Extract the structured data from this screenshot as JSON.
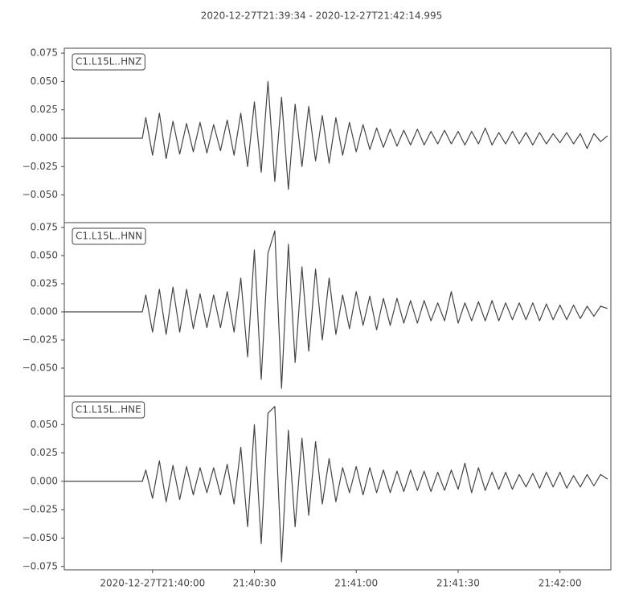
{
  "title": "2020-12-27T21:39:34  -  2020-12-27T21:42:14.995",
  "chart_data": [
    {
      "type": "line",
      "xlim": [
        0,
        160.995
      ],
      "ylim": [
        -0.0744,
        0.0793
      ],
      "yticks": [
        0.075,
        {
          "value": 0.05,
          "label": "0.050"
        },
        0.025,
        {
          "value": 0,
          "label": "0.000"
        },
        {
          "value": -0.025,
          "label": "−0.025"
        },
        {
          "value": -0.05,
          "label": "−0.050"
        }
      ],
      "x": [
        0,
        12,
        23,
        24,
        26,
        28,
        30,
        32,
        34,
        36,
        38,
        40,
        42,
        44,
        46,
        48,
        50,
        52,
        54,
        56,
        58,
        60,
        62,
        64,
        66,
        68,
        70,
        72,
        74,
        76,
        78,
        80,
        82,
        84,
        86,
        88,
        90,
        92,
        94,
        96,
        98,
        100,
        102,
        104,
        106,
        108,
        110,
        112,
        114,
        116,
        118,
        120,
        122,
        124,
        126,
        128,
        130,
        132,
        134,
        136,
        138,
        140,
        142,
        144,
        146,
        148,
        150,
        152,
        154,
        156,
        158,
        160
      ],
      "series": [
        {
          "name": "C1.L15L..HNZ",
          "color": "#444444",
          "values": [
            0,
            0,
            0,
            0.018,
            -0.015,
            0.022,
            -0.018,
            0.015,
            -0.014,
            0.013,
            -0.012,
            0.014,
            -0.013,
            0.012,
            -0.011,
            0.016,
            -0.015,
            0.022,
            -0.025,
            0.032,
            -0.03,
            0.05,
            -0.038,
            0.036,
            -0.045,
            0.03,
            -0.025,
            0.028,
            -0.02,
            0.02,
            -0.022,
            0.018,
            -0.015,
            0.014,
            -0.012,
            0.012,
            -0.01,
            0.009,
            -0.008,
            0.008,
            -0.007,
            0.007,
            -0.006,
            0.008,
            -0.006,
            0.006,
            -0.005,
            0.007,
            -0.005,
            0.006,
            -0.006,
            0.006,
            -0.005,
            0.009,
            -0.006,
            0.005,
            -0.005,
            0.006,
            -0.005,
            0.005,
            -0.006,
            0.005,
            -0.005,
            0.004,
            -0.004,
            0.005,
            -0.005,
            0.004,
            -0.009,
            0.004,
            -0.003,
            0.002
          ]
        }
      ]
    },
    {
      "type": "line",
      "xlim": [
        0,
        160.995
      ],
      "ylim": [
        -0.075,
        0.0793
      ],
      "yticks": [
        0.075,
        {
          "value": 0.05,
          "label": "0.050"
        },
        0.025,
        {
          "value": 0,
          "label": "0.000"
        },
        {
          "value": -0.025,
          "label": "−0.025"
        },
        {
          "value": -0.05,
          "label": "−0.050"
        }
      ],
      "x": [
        0,
        12,
        23,
        24,
        26,
        28,
        30,
        32,
        34,
        36,
        38,
        40,
        42,
        44,
        46,
        48,
        50,
        52,
        54,
        56,
        58,
        60,
        62,
        64,
        66,
        68,
        70,
        72,
        74,
        76,
        78,
        80,
        82,
        84,
        86,
        88,
        90,
        92,
        94,
        96,
        98,
        100,
        102,
        104,
        106,
        108,
        110,
        112,
        114,
        116,
        118,
        120,
        122,
        124,
        126,
        128,
        130,
        132,
        134,
        136,
        138,
        140,
        142,
        144,
        146,
        148,
        150,
        152,
        154,
        156,
        158,
        160
      ],
      "series": [
        {
          "name": "C1.L15L..HNN",
          "color": "#444444",
          "values": [
            0,
            0,
            0,
            0.015,
            -0.018,
            0.02,
            -0.02,
            0.022,
            -0.018,
            0.02,
            -0.015,
            0.016,
            -0.014,
            0.015,
            -0.014,
            0.018,
            -0.018,
            0.03,
            -0.04,
            0.055,
            -0.06,
            0.052,
            0.072,
            -0.068,
            0.06,
            -0.045,
            0.04,
            -0.035,
            0.038,
            -0.025,
            0.03,
            -0.02,
            0.015,
            -0.015,
            0.018,
            -0.012,
            0.014,
            -0.016,
            0.012,
            -0.012,
            0.012,
            -0.01,
            0.01,
            -0.01,
            0.01,
            -0.008,
            0.008,
            -0.008,
            0.018,
            -0.01,
            0.008,
            -0.008,
            0.009,
            -0.008,
            0.01,
            -0.008,
            0.008,
            -0.007,
            0.008,
            -0.007,
            0.008,
            -0.008,
            0.007,
            -0.007,
            0.006,
            -0.007,
            0.006,
            -0.006,
            0.005,
            -0.004,
            0.005,
            0.003
          ]
        }
      ]
    },
    {
      "type": "line",
      "xlim": [
        0,
        160.995
      ],
      "ylim": [
        -0.078,
        0.075
      ],
      "yticks": [
        {
          "value": 0.05,
          "label": "0.050"
        },
        0.025,
        {
          "value": 0,
          "label": "0.000"
        },
        {
          "value": -0.025,
          "label": "−0.025"
        },
        {
          "value": -0.05,
          "label": "−0.050"
        },
        {
          "value": -0.075,
          "label": "−0.075"
        }
      ],
      "xticks": [
        {
          "value": 26,
          "label": "2020-12-27T21:40:00"
        },
        {
          "value": 56,
          "label": "21:40:30"
        },
        {
          "value": 86,
          "label": "21:41:00"
        },
        {
          "value": 116,
          "label": "21:41:30"
        },
        {
          "value": 146,
          "label": "21:42:00"
        }
      ],
      "x": [
        0,
        12,
        23,
        24,
        26,
        28,
        30,
        32,
        34,
        36,
        38,
        40,
        42,
        44,
        46,
        48,
        50,
        52,
        54,
        56,
        58,
        60,
        62,
        64,
        66,
        68,
        70,
        72,
        74,
        76,
        78,
        80,
        82,
        84,
        86,
        88,
        90,
        92,
        94,
        96,
        98,
        100,
        102,
        104,
        106,
        108,
        110,
        112,
        114,
        116,
        118,
        120,
        122,
        124,
        126,
        128,
        130,
        132,
        134,
        136,
        138,
        140,
        142,
        144,
        146,
        148,
        150,
        152,
        154,
        156,
        158,
        160
      ],
      "series": [
        {
          "name": "C1.L15L..HNE",
          "color": "#444444",
          "values": [
            0,
            0,
            0,
            0.01,
            -0.015,
            0.018,
            -0.018,
            0.014,
            -0.016,
            0.013,
            -0.012,
            0.012,
            -0.01,
            0.012,
            -0.012,
            0.015,
            -0.02,
            0.03,
            -0.04,
            0.05,
            -0.055,
            0.06,
            0.066,
            -0.071,
            0.045,
            -0.04,
            0.038,
            -0.03,
            0.035,
            -0.02,
            0.02,
            -0.018,
            0.012,
            -0.01,
            0.013,
            -0.012,
            0.012,
            -0.01,
            0.01,
            -0.01,
            0.009,
            -0.009,
            0.01,
            -0.008,
            0.009,
            -0.009,
            0.008,
            -0.008,
            0.01,
            -0.007,
            0.016,
            -0.01,
            0.012,
            -0.008,
            0.008,
            -0.007,
            0.008,
            -0.007,
            0.006,
            -0.005,
            0.007,
            -0.006,
            0.008,
            -0.005,
            0.008,
            -0.006,
            0.005,
            -0.005,
            0.006,
            -0.004,
            0.006,
            0.002
          ]
        }
      ]
    }
  ]
}
